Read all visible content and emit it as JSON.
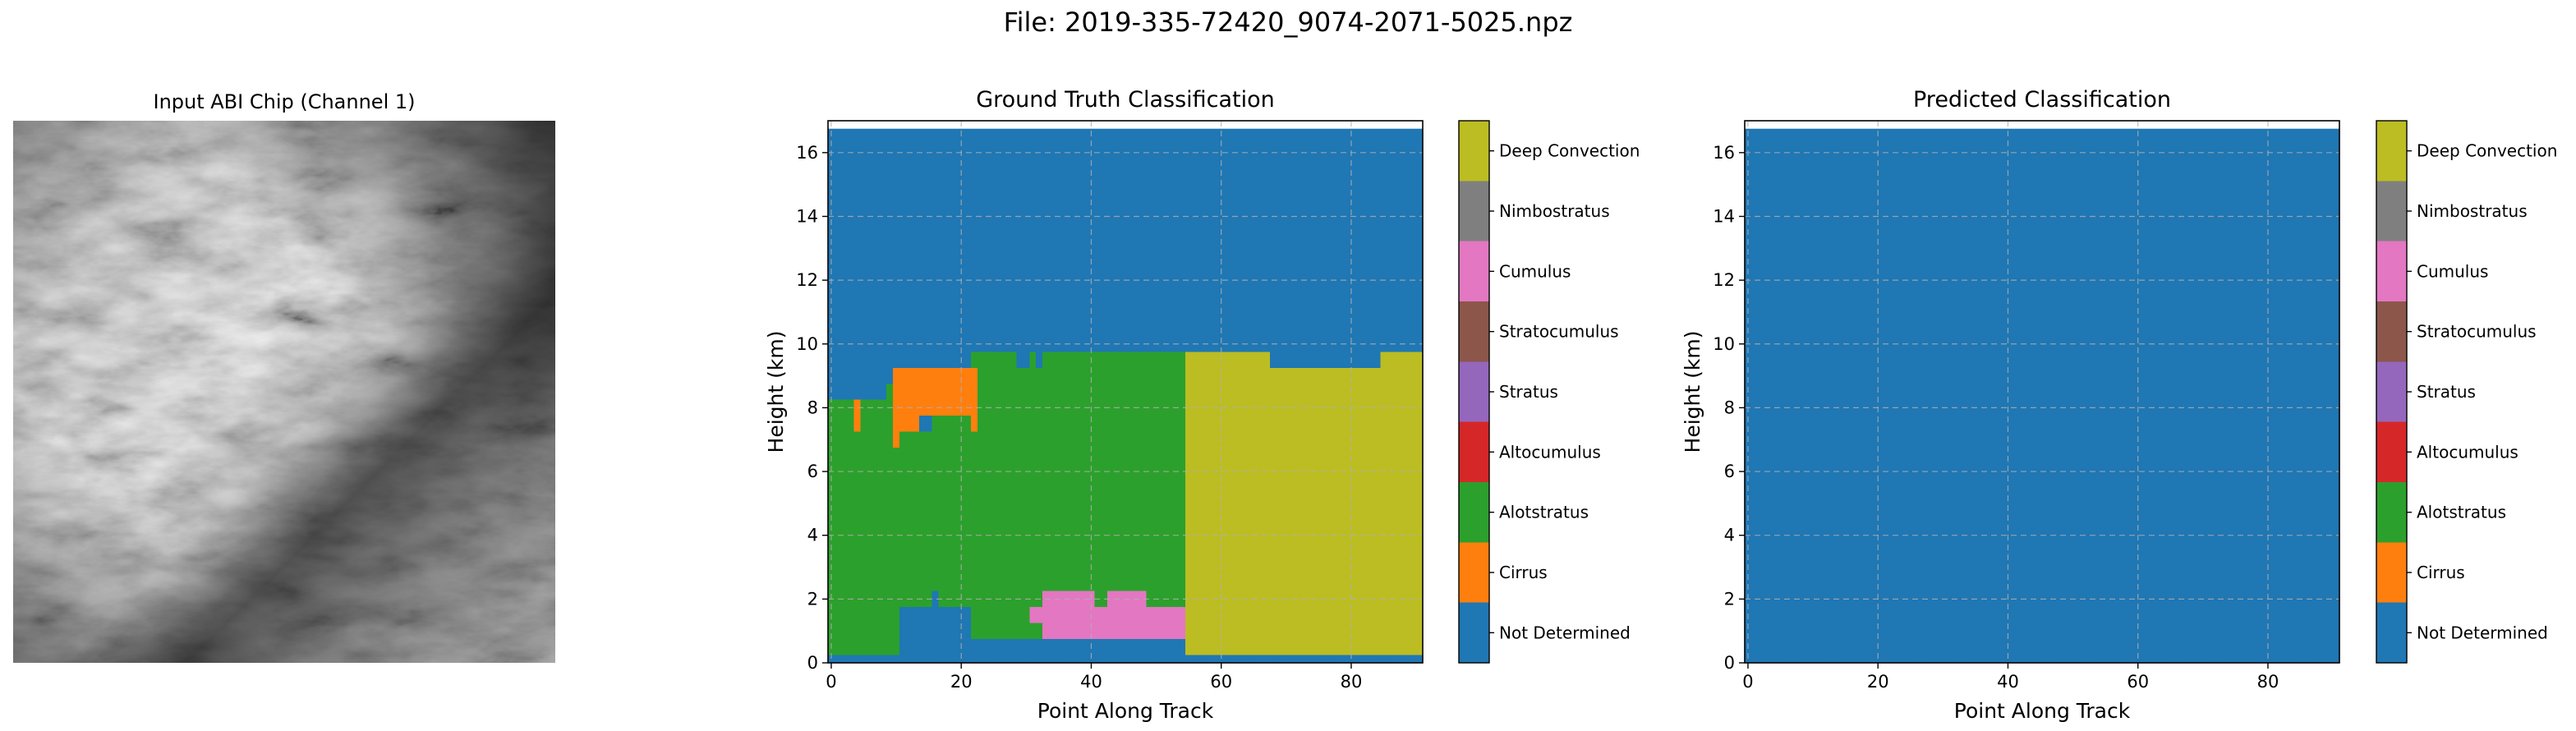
{
  "figure": {
    "suptitle": "File: 2019-335-72420_9074-2071-5025.npz"
  },
  "image_panel": {
    "title": "Input ABI Chip (Channel 1)"
  },
  "classes": [
    "Not Determined",
    "Cirrus",
    "Alotstratus",
    "Altocumulus",
    "Stratus",
    "Stratocumulus",
    "Cumulus",
    "Nimbostratus",
    "Deep Convection"
  ],
  "class_colors": [
    "#1f77b4",
    "#ff7f0e",
    "#2ca02c",
    "#d62728",
    "#9467bd",
    "#8c564b",
    "#e377c2",
    "#7f7f7f",
    "#bcbd22",
    "#17becf"
  ],
  "chart_data": [
    {
      "type": "heatmap",
      "title": "Ground Truth Classification",
      "xlabel": "Point Along Track",
      "ylabel": "Height (km)",
      "xlim": [
        -0.5,
        91
      ],
      "ylim": [
        0,
        17
      ],
      "xticks": [
        0,
        20,
        40,
        60,
        80
      ],
      "yticks": [
        0,
        2,
        4,
        6,
        8,
        10,
        12,
        14,
        16
      ],
      "grid": true,
      "background_class": 0,
      "regions": [
        {
          "class": 2,
          "x": [
            -0.5,
            54.5
          ],
          "y": [
            0.25,
            8.25
          ]
        },
        {
          "class": 2,
          "x": [
            8.5,
            54.5
          ],
          "y": [
            8.25,
            8.75
          ]
        },
        {
          "class": 2,
          "x": [
            10.5,
            54.5
          ],
          "y": [
            8.75,
            9.25
          ]
        },
        {
          "class": 2,
          "x": [
            21.5,
            54.5
          ],
          "y": [
            9.25,
            9.75
          ]
        },
        {
          "class": 0,
          "x": [
            28.5,
            30.5
          ],
          "y": [
            9.25,
            9.75
          ]
        },
        {
          "class": 0,
          "x": [
            31.5,
            32.5
          ],
          "y": [
            9.25,
            9.75
          ]
        },
        {
          "class": 0,
          "x": [
            10.5,
            21.5
          ],
          "y": [
            0.25,
            1.75
          ]
        },
        {
          "class": 0,
          "x": [
            15.5,
            16.5
          ],
          "y": [
            1.75,
            2.25
          ]
        },
        {
          "class": 0,
          "x": [
            21.5,
            28.5
          ],
          "y": [
            0.25,
            0.75
          ]
        },
        {
          "class": 0,
          "x": [
            28.5,
            54.5
          ],
          "y": [
            0.25,
            0.75
          ]
        },
        {
          "class": 1,
          "x": [
            9.5,
            21.5
          ],
          "y": [
            8.25,
            9.25
          ]
        },
        {
          "class": 1,
          "x": [
            12.5,
            21.5
          ],
          "y": [
            7.75,
            8.25
          ]
        },
        {
          "class": 1,
          "x": [
            9.5,
            10.5
          ],
          "y": [
            6.75,
            8.25
          ]
        },
        {
          "class": 1,
          "x": [
            10.5,
            13.5
          ],
          "y": [
            7.25,
            8.25
          ]
        },
        {
          "class": 1,
          "x": [
            3.5,
            4.5
          ],
          "y": [
            7.25,
            8.25
          ]
        },
        {
          "class": 1,
          "x": [
            21.5,
            22.5
          ],
          "y": [
            7.25,
            9.25
          ]
        },
        {
          "class": 0,
          "x": [
            13.5,
            15.5
          ],
          "y": [
            7.25,
            7.75
          ]
        },
        {
          "class": 6,
          "x": [
            32.5,
            40.5
          ],
          "y": [
            0.75,
            2.25
          ]
        },
        {
          "class": 6,
          "x": [
            42.5,
            48.5
          ],
          "y": [
            1.75,
            2.25
          ]
        },
        {
          "class": 6,
          "x": [
            40.5,
            54.5
          ],
          "y": [
            0.75,
            1.75
          ]
        },
        {
          "class": 6,
          "x": [
            30.5,
            32.5
          ],
          "y": [
            1.25,
            1.75
          ]
        },
        {
          "class": 8,
          "x": [
            54.5,
            91
          ],
          "y": [
            0.25,
            9.25
          ]
        },
        {
          "class": 8,
          "x": [
            54.5,
            67.5
          ],
          "y": [
            9.25,
            9.75
          ]
        },
        {
          "class": 8,
          "x": [
            84.5,
            91
          ],
          "y": [
            9.25,
            9.75
          ]
        }
      ]
    },
    {
      "type": "heatmap",
      "title": "Predicted Classification",
      "xlabel": "Point Along Track",
      "ylabel": "Height (km)",
      "xlim": [
        -0.5,
        91
      ],
      "ylim": [
        0,
        17
      ],
      "xticks": [
        0,
        20,
        40,
        60,
        80
      ],
      "yticks": [
        0,
        2,
        4,
        6,
        8,
        10,
        12,
        14,
        16
      ],
      "grid": true,
      "background_class": 0,
      "regions": []
    }
  ]
}
